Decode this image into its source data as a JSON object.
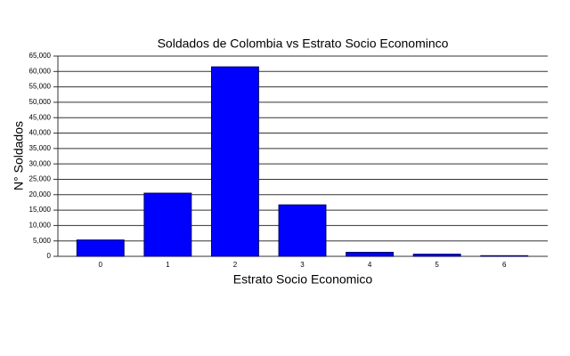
{
  "chart_data": {
    "type": "bar",
    "title": "Soldados de Colombia vs Estrato Socio Econominco",
    "x_label": "Estrato Socio Economico",
    "y_label": "N° Soldados",
    "categories": [
      "0",
      "1",
      "2",
      "3",
      "4",
      "5",
      "6"
    ],
    "values": [
      5300,
      20500,
      61500,
      16700,
      1300,
      700,
      200
    ],
    "color": "#0000ff",
    "ylim": [
      0,
      65000
    ],
    "yticks": [
      0,
      {
        "value": 5000,
        "label": "5,000"
      },
      {
        "value": 10000,
        "label": "10,000"
      },
      {
        "value": 15000,
        "label": "15,000"
      },
      {
        "value": 20000,
        "label": "20,000"
      },
      {
        "value": 25000,
        "label": "25,000"
      },
      {
        "value": 30000,
        "label": "30,000"
      },
      {
        "value": 35000,
        "label": "35,000"
      },
      {
        "value": 40000,
        "label": "40,000"
      },
      {
        "value": 45000,
        "label": "45,000"
      },
      {
        "value": 50000,
        "label": "50,000"
      },
      {
        "value": 55000,
        "label": "55,000"
      },
      {
        "value": 60000,
        "label": "60,000"
      },
      {
        "value": 65000,
        "label": "65,000"
      }
    ],
    "grid": true
  }
}
